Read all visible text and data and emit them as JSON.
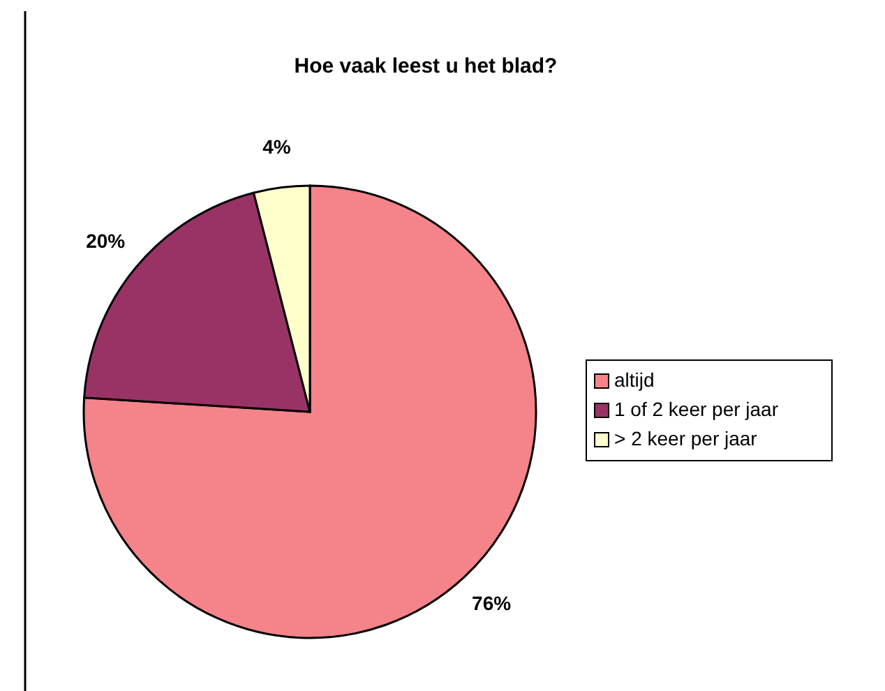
{
  "chart_data": {
    "type": "pie",
    "title": "Hoe vaak leest u het blad?",
    "categories": [
      "altijd",
      "1 of 2 keer per jaar",
      "> 2 keer per jaar"
    ],
    "values": [
      76,
      20,
      4
    ],
    "colors": [
      "#f4838a",
      "#993366",
      "#ffffcc"
    ],
    "value_labels": [
      "76%",
      "20%",
      "4%"
    ],
    "legend": "right"
  }
}
